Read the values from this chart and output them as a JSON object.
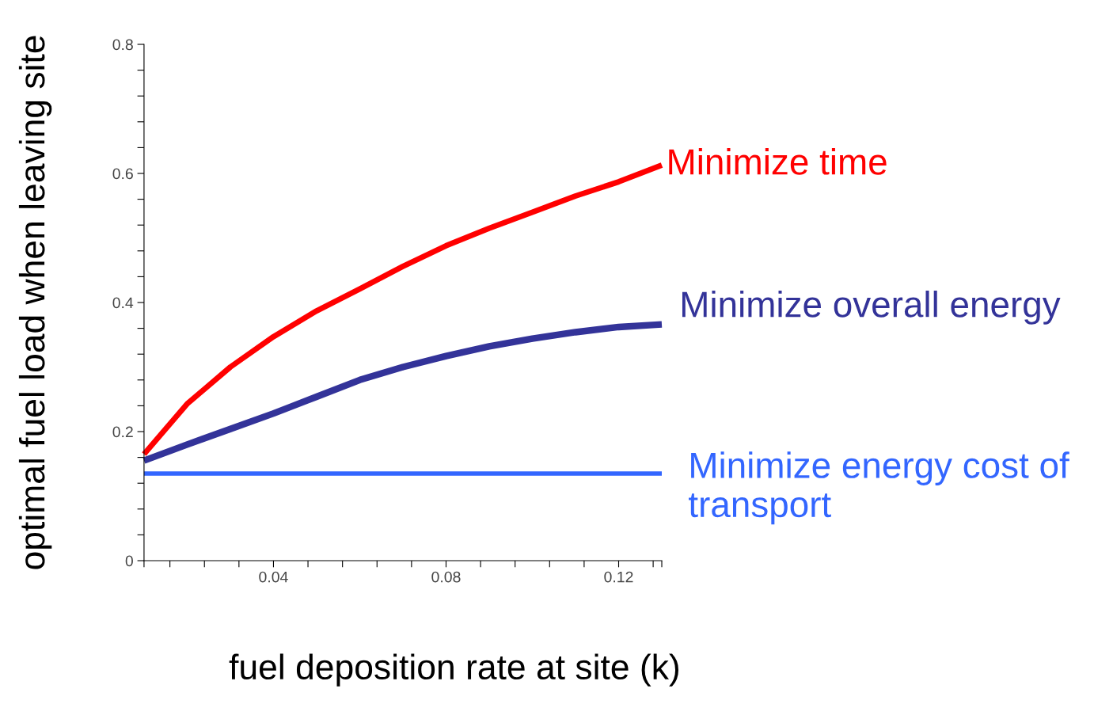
{
  "chart_data": {
    "type": "line",
    "xlabel": "fuel deposition rate at site (k)",
    "ylabel": "optimal fuel load when leaving site",
    "xlim": [
      0.01,
      0.13
    ],
    "ylim": [
      0,
      0.8
    ],
    "xticks": [
      {
        "value": 0.01,
        "label": null
      },
      {
        "value": 0.016,
        "label": null
      },
      {
        "value": 0.024,
        "label": null
      },
      {
        "value": 0.032,
        "label": null
      },
      {
        "value": 0.04,
        "label": "0.04"
      },
      {
        "value": 0.048,
        "label": null
      },
      {
        "value": 0.056,
        "label": null
      },
      {
        "value": 0.064,
        "label": null
      },
      {
        "value": 0.072,
        "label": null
      },
      {
        "value": 0.08,
        "label": "0.08"
      },
      {
        "value": 0.088,
        "label": null
      },
      {
        "value": 0.096,
        "label": null
      },
      {
        "value": 0.104,
        "label": null
      },
      {
        "value": 0.112,
        "label": null
      },
      {
        "value": 0.12,
        "label": "0.12"
      },
      {
        "value": 0.128,
        "label": null
      },
      {
        "value": 0.13,
        "label": null
      }
    ],
    "yticks": [
      0,
      {
        "value": 0.04,
        "label": null
      },
      {
        "value": 0.08,
        "label": null
      },
      {
        "value": 0.12,
        "label": null
      },
      {
        "value": 0.16,
        "label": null
      },
      {
        "value": 0.2,
        "label": "0.2"
      },
      {
        "value": 0.24,
        "label": null
      },
      {
        "value": 0.28,
        "label": null
      },
      {
        "value": 0.32,
        "label": null
      },
      {
        "value": 0.36,
        "label": null
      },
      {
        "value": 0.4,
        "label": "0.4"
      },
      {
        "value": 0.44,
        "label": null
      },
      {
        "value": 0.48,
        "label": null
      },
      {
        "value": 0.52,
        "label": null
      },
      {
        "value": 0.56,
        "label": null
      },
      {
        "value": 0.6,
        "label": "0.6"
      },
      {
        "value": 0.64,
        "label": null
      },
      {
        "value": 0.68,
        "label": null
      },
      {
        "value": 0.72,
        "label": null
      },
      {
        "value": 0.76,
        "label": null
      },
      {
        "value": 0.8,
        "label": "0.8"
      }
    ],
    "grid": false,
    "legend": false,
    "marker": "none",
    "line_style": "solid",
    "series": [
      {
        "name": "Minimize time",
        "color": "#ff0000",
        "x": [
          0.01,
          0.02,
          0.03,
          0.04,
          0.05,
          0.06,
          0.07,
          0.08,
          0.09,
          0.1,
          0.11,
          0.12,
          0.13
        ],
        "values": [
          0.165,
          0.243,
          0.3,
          0.347,
          0.387,
          0.421,
          0.456,
          0.488,
          0.515,
          0.54,
          0.565,
          0.587,
          0.613
        ]
      },
      {
        "name": "Minimize overall energy",
        "color": "#333399",
        "x": [
          0.01,
          0.02,
          0.03,
          0.04,
          0.05,
          0.06,
          0.07,
          0.08,
          0.09,
          0.1,
          0.11,
          0.12,
          0.13
        ],
        "values": [
          0.155,
          0.18,
          0.204,
          0.228,
          0.254,
          0.28,
          0.3,
          0.317,
          0.332,
          0.344,
          0.354,
          0.362,
          0.366
        ]
      },
      {
        "name": "Minimize energy cost of transport",
        "color": "#3366ff",
        "x": [
          0.01,
          0.13
        ],
        "values": [
          0.135,
          0.135
        ]
      }
    ]
  }
}
